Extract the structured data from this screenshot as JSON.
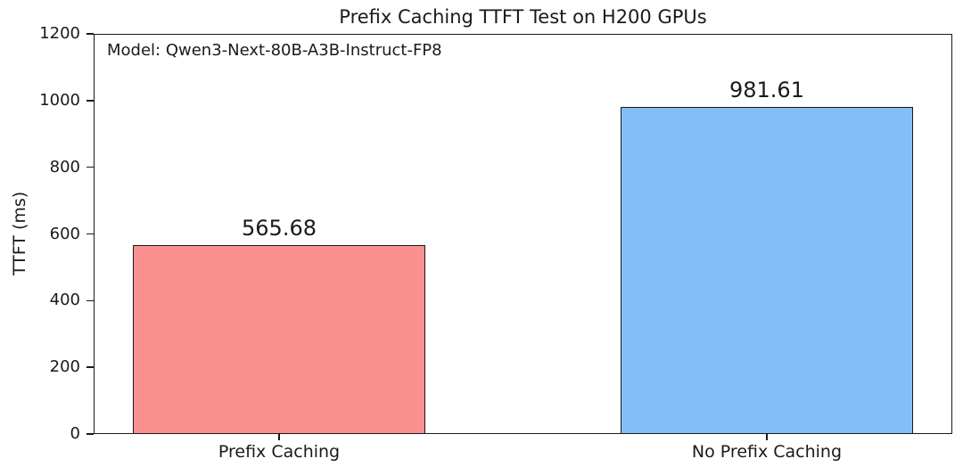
{
  "chart_data": {
    "type": "bar",
    "title": "Prefix Caching TTFT Test on H200 GPUs",
    "annotation": "Model: Qwen3-Next-80B-A3B-Instruct-FP8",
    "categories": [
      "Prefix Caching",
      "No Prefix Caching"
    ],
    "values": [
      565.68,
      981.61
    ],
    "value_labels": [
      "565.68",
      "981.61"
    ],
    "bar_colors": [
      "#fa9090",
      "#85bdf8"
    ],
    "bar_edge_color": "#1a1a1a",
    "xlabel": "",
    "ylabel": "TTFT (ms)",
    "ylim": [
      0,
      1200
    ],
    "yticks": [
      0,
      200,
      400,
      600,
      800,
      1000,
      1200
    ],
    "grid": false,
    "legend": "none",
    "background_color": "#ffffff"
  }
}
